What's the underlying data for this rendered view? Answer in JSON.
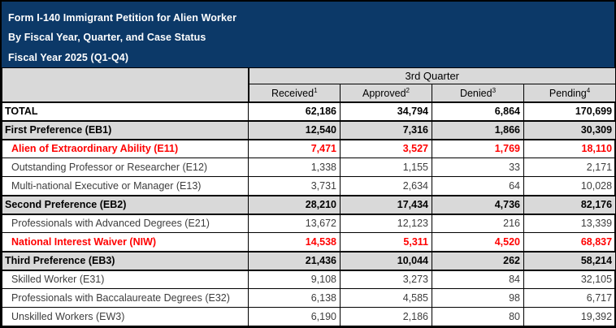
{
  "header": {
    "title_lines": [
      "Form I-140 Immigrant Petition for Alien Worker",
      "By Fiscal Year, Quarter, and Case Status",
      "Fiscal Year 2025 (Q1-Q4)"
    ],
    "bg_color": "#0C3968",
    "text_color": "#FFFFFF"
  },
  "table": {
    "quarter_header": "3rd Quarter",
    "columns": [
      {
        "label": "Received",
        "footnote": "1"
      },
      {
        "label": "Approved",
        "footnote": "2"
      },
      {
        "label": "Denied",
        "footnote": "3"
      },
      {
        "label": "Pending",
        "footnote": "4"
      }
    ],
    "rows": [
      {
        "label": "TOTAL",
        "style": "total",
        "values": [
          "62,186",
          "34,794",
          "6,864",
          "170,699"
        ]
      },
      {
        "label": "First Preference (EB1)",
        "style": "section",
        "values": [
          "12,540",
          "7,316",
          "1,866",
          "30,309"
        ]
      },
      {
        "label": "Alien of Extraordinary Ability (E11)",
        "style": "highlight",
        "values": [
          "7,471",
          "3,527",
          "1,769",
          "18,110"
        ]
      },
      {
        "label": "Outstanding Professor or Researcher (E12)",
        "style": "sub",
        "values": [
          "1,338",
          "1,155",
          "33",
          "2,171"
        ]
      },
      {
        "label": "Multi-national Executive or Manager (E13)",
        "style": "sub",
        "values": [
          "3,731",
          "2,634",
          "64",
          "10,028"
        ]
      },
      {
        "label": "Second Preference (EB2)",
        "style": "section",
        "values": [
          "28,210",
          "17,434",
          "4,736",
          "82,176"
        ]
      },
      {
        "label": "Professionals with Advanced Degrees (E21)",
        "style": "sub",
        "values": [
          "13,672",
          "12,123",
          "216",
          "13,339"
        ]
      },
      {
        "label": "National Interest Waiver (NIW)",
        "style": "highlight",
        "values": [
          "14,538",
          "5,311",
          "4,520",
          "68,837"
        ]
      },
      {
        "label": "Third Preference (EB3)",
        "style": "section",
        "values": [
          "21,436",
          "10,044",
          "262",
          "58,214"
        ]
      },
      {
        "label": "Skilled Worker (E31)",
        "style": "sub",
        "values": [
          "9,108",
          "3,273",
          "84",
          "32,105"
        ]
      },
      {
        "label": "Professionals with Baccalaureate Degrees (E32)",
        "style": "sub",
        "values": [
          "6,138",
          "4,585",
          "98",
          "6,717"
        ]
      },
      {
        "label": "Unskilled Workers (EW3)",
        "style": "sub",
        "values": [
          "6,190",
          "2,186",
          "80",
          "19,392"
        ]
      }
    ],
    "colors": {
      "section_band": "#D9D9D9",
      "highlight_text": "#FF0000",
      "border": "#000000"
    }
  }
}
